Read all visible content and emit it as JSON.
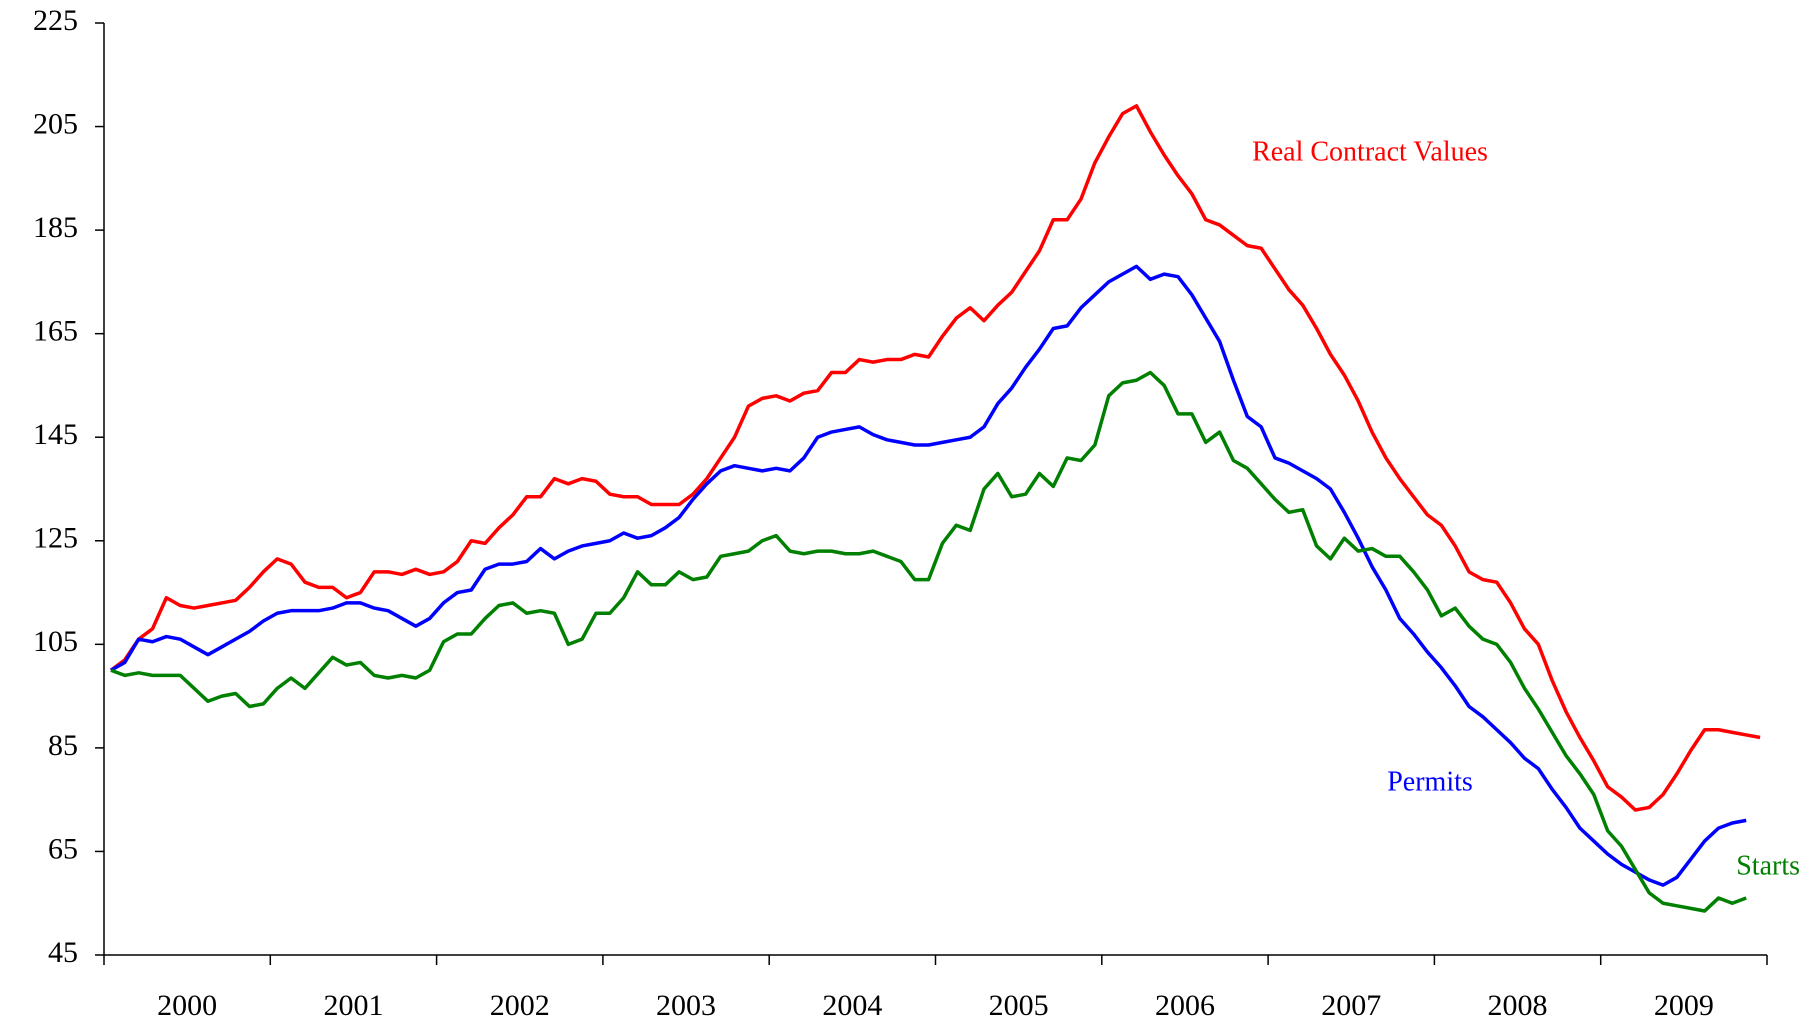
{
  "chart_data": {
    "type": "line",
    "x": [
      "2000-01",
      "2000-02",
      "2000-03",
      "2000-04",
      "2000-05",
      "2000-06",
      "2000-07",
      "2000-08",
      "2000-09",
      "2000-10",
      "2000-11",
      "2000-12",
      "2001-01",
      "2001-02",
      "2001-03",
      "2001-04",
      "2001-05",
      "2001-06",
      "2001-07",
      "2001-08",
      "2001-09",
      "2001-10",
      "2001-11",
      "2001-12",
      "2002-01",
      "2002-02",
      "2002-03",
      "2002-04",
      "2002-05",
      "2002-06",
      "2002-07",
      "2002-08",
      "2002-09",
      "2002-10",
      "2002-11",
      "2002-12",
      "2003-01",
      "2003-02",
      "2003-03",
      "2003-04",
      "2003-05",
      "2003-06",
      "2003-07",
      "2003-08",
      "2003-09",
      "2003-10",
      "2003-11",
      "2003-12",
      "2004-01",
      "2004-02",
      "2004-03",
      "2004-04",
      "2004-05",
      "2004-06",
      "2004-07",
      "2004-08",
      "2004-09",
      "2004-10",
      "2004-11",
      "2004-12",
      "2005-01",
      "2005-02",
      "2005-03",
      "2005-04",
      "2005-05",
      "2005-06",
      "2005-07",
      "2005-08",
      "2005-09",
      "2005-10",
      "2005-11",
      "2005-12",
      "2006-01",
      "2006-02",
      "2006-03",
      "2006-04",
      "2006-05",
      "2006-06",
      "2006-07",
      "2006-08",
      "2006-09",
      "2006-10",
      "2006-11",
      "2006-12",
      "2007-01",
      "2007-02",
      "2007-03",
      "2007-04",
      "2007-05",
      "2007-06",
      "2007-07",
      "2007-08",
      "2007-09",
      "2007-10",
      "2007-11",
      "2007-12",
      "2008-01",
      "2008-02",
      "2008-03",
      "2008-04",
      "2008-05",
      "2008-06",
      "2008-07",
      "2008-08",
      "2008-09",
      "2008-10",
      "2008-11",
      "2008-12",
      "2009-01",
      "2009-02",
      "2009-03",
      "2009-04",
      "2009-05",
      "2009-06",
      "2009-07",
      "2009-08",
      "2009-09",
      "2009-10",
      "2009-11",
      "2009-12"
    ],
    "series": [
      {
        "name": "Real Contract Values",
        "color": "#ff0000",
        "values": [
          100,
          102,
          106,
          108,
          114,
          112.5,
          112,
          112.5,
          113,
          113.5,
          116,
          119,
          121.5,
          120.5,
          117,
          116,
          116,
          114,
          115,
          119,
          119,
          118.5,
          119.5,
          118.5,
          119,
          121,
          125,
          124.5,
          127.5,
          130,
          133.5,
          133.5,
          137,
          136,
          137,
          136.5,
          134,
          133.5,
          133.5,
          132,
          132,
          132,
          134,
          137,
          141,
          145,
          151,
          152.5,
          153,
          152,
          153.5,
          154,
          157.5,
          157.5,
          160,
          159.5,
          160,
          160,
          161,
          160.5,
          164.5,
          168,
          170,
          167.5,
          170.5,
          173,
          177,
          181,
          187,
          187,
          191,
          198,
          203,
          207.5,
          209,
          204,
          199.5,
          195.5,
          192,
          187,
          186,
          184,
          182,
          181.5,
          177.5,
          173.5,
          170.5,
          166,
          161,
          157,
          152,
          146,
          141,
          137,
          133.5,
          130,
          128,
          124,
          119,
          117.5,
          117,
          113,
          108,
          105,
          98,
          92,
          87,
          82.5,
          77.5,
          75.5,
          73,
          73.5,
          76,
          80,
          84.5,
          88.5,
          88.5,
          88,
          87.5,
          87
        ]
      },
      {
        "name": "Permits",
        "color": "#0000ff",
        "values": [
          100,
          101.5,
          106,
          105.5,
          106.5,
          106,
          104.5,
          103,
          104.5,
          106,
          107.5,
          109.5,
          111,
          111.5,
          111.5,
          111.5,
          112,
          113,
          113,
          112,
          111.5,
          110,
          108.5,
          110,
          113,
          115,
          115.5,
          119.5,
          120.5,
          120.5,
          121,
          123.5,
          121.5,
          123,
          124,
          124.5,
          125,
          126.5,
          125.5,
          126,
          127.5,
          129.5,
          133,
          136,
          138.5,
          139.5,
          139,
          138.5,
          139,
          138.5,
          141,
          145,
          146,
          146.5,
          147,
          145.5,
          144.5,
          144,
          143.5,
          143.5,
          144,
          144.5,
          145,
          147,
          151.5,
          154.5,
          158.5,
          162,
          166,
          166.5,
          170,
          172.5,
          175,
          176.5,
          178,
          175.5,
          176.5,
          176,
          172.5,
          168,
          163.5,
          156,
          149,
          147,
          141,
          140,
          138.5,
          137,
          135,
          130.5,
          125.5,
          120,
          115.5,
          110,
          107,
          103.5,
          100.5,
          97,
          93,
          91,
          88.5,
          86,
          83,
          81,
          77,
          73.5,
          69.5,
          67,
          64.5,
          62.5,
          61,
          59.5,
          58.5,
          60,
          63.5,
          67,
          69.5,
          70.5,
          71,
          null
        ]
      },
      {
        "name": "Starts",
        "color": "#008000",
        "values": [
          100,
          99,
          99.5,
          99,
          99,
          99,
          96.5,
          94,
          95,
          95.5,
          93,
          93.5,
          96.5,
          98.5,
          96.5,
          99.5,
          102.5,
          101,
          101.5,
          99,
          98.5,
          99,
          98.5,
          100,
          105.5,
          107,
          107,
          110,
          112.5,
          113,
          111,
          111.5,
          111,
          105,
          106,
          111,
          111,
          114,
          119,
          116.5,
          116.5,
          119,
          117.5,
          118,
          122,
          122.5,
          123,
          125,
          126,
          123,
          122.5,
          123,
          123,
          122.5,
          122.5,
          123,
          122,
          121,
          117.5,
          117.5,
          124.5,
          128,
          127,
          135,
          138,
          133.5,
          134,
          138,
          135.5,
          141,
          140.5,
          143.5,
          153,
          155.5,
          156,
          157.5,
          155,
          149.5,
          149.5,
          144,
          146,
          140.5,
          139,
          136,
          133,
          130.5,
          131,
          124,
          121.5,
          125.5,
          123,
          123.5,
          122,
          122,
          119,
          115.5,
          110.5,
          112,
          108.5,
          106,
          105,
          101.5,
          96.5,
          92.5,
          88,
          83.5,
          80,
          76,
          69,
          66,
          61.5,
          57,
          55,
          54.5,
          54,
          53.5,
          56,
          55,
          56,
          null
        ]
      }
    ],
    "ylim": [
      45,
      225
    ],
    "yticks": [
      45,
      65,
      85,
      105,
      125,
      145,
      165,
      185,
      205,
      225
    ],
    "xticks": [
      2000,
      2001,
      2002,
      2003,
      2004,
      2005,
      2006,
      2007,
      2008,
      2009
    ],
    "grid": false
  }
}
